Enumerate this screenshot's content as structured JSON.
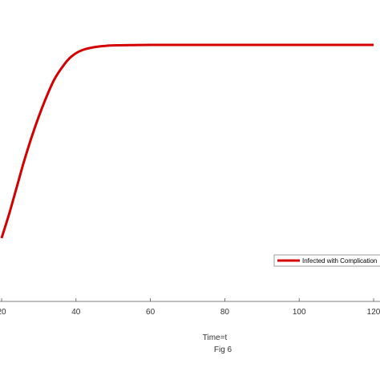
{
  "chart_data": {
    "type": "line",
    "xlabel": "Time=t",
    "caption": "Fig 6",
    "xlim": [
      0,
      120
    ],
    "x_ticks": [
      20,
      40,
      60,
      80,
      100,
      120
    ],
    "x_tick_labels": [
      "20",
      "40",
      "60",
      "80",
      "100",
      "120"
    ],
    "series": [
      {
        "name": "Infected with Complication",
        "color": "#d40000",
        "x": [
          20,
          22,
          24,
          26,
          28,
          30,
          32,
          34,
          36,
          38,
          40,
          42,
          44,
          46,
          48,
          50,
          55,
          60,
          65,
          70,
          80,
          90,
          100,
          110,
          120
        ],
        "y": [
          0.19,
          0.29,
          0.4,
          0.51,
          0.61,
          0.7,
          0.78,
          0.85,
          0.9,
          0.94,
          0.965,
          0.98,
          0.988,
          0.993,
          0.996,
          0.998,
          0.999,
          1.0,
          1.0,
          1.0,
          1.0,
          1.0,
          1.0,
          1.0,
          1.0
        ]
      }
    ],
    "legend": {
      "position": "lower-right",
      "entries": [
        "Infected with Complication"
      ]
    }
  }
}
